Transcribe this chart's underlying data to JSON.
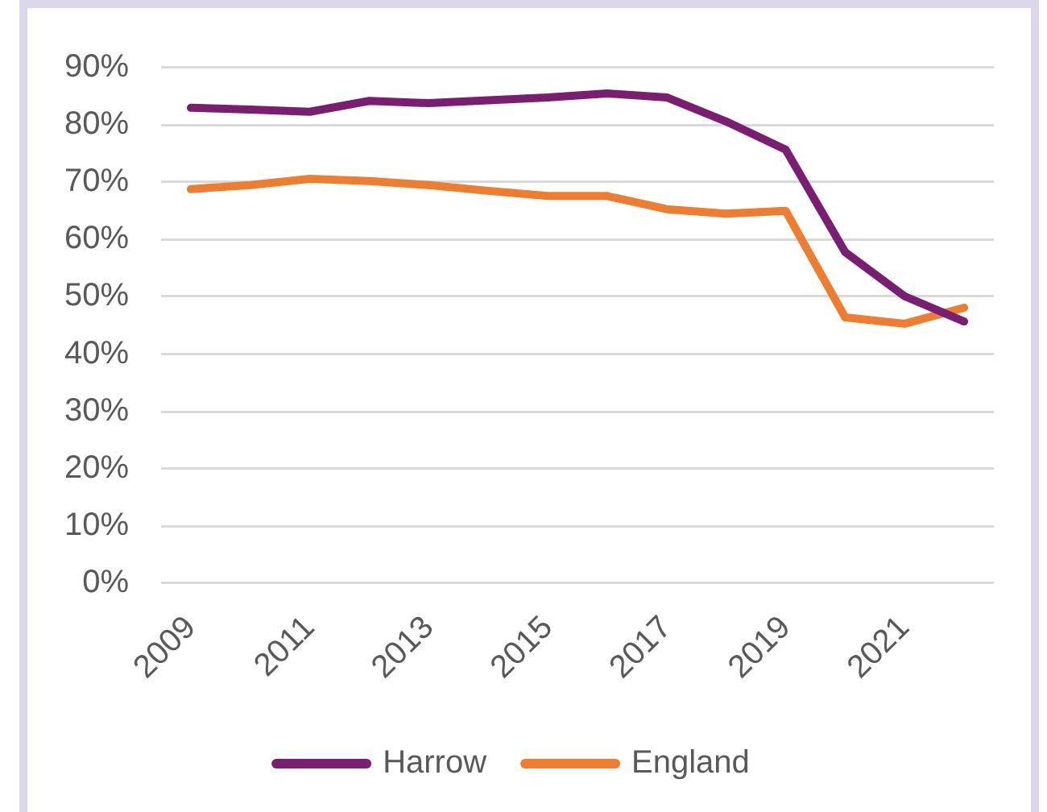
{
  "chart_data": {
    "type": "line",
    "categories": [
      "2009",
      null,
      "2011",
      null,
      "2013",
      null,
      "2015",
      null,
      "2017",
      null,
      "2019",
      null,
      "2021",
      null
    ],
    "series": [
      {
        "name": "Harrow",
        "color": "#7a1e71",
        "values": [
          83.0,
          82.7,
          82.3,
          84.2,
          83.8,
          84.3,
          84.8,
          85.5,
          84.8,
          80.6,
          75.7,
          57.8,
          50.1,
          45.7
        ]
      },
      {
        "name": "England",
        "color": "#ed7d31",
        "values": [
          68.8,
          69.5,
          70.6,
          70.2,
          69.5,
          68.5,
          67.6,
          67.6,
          65.3,
          64.5,
          65.0,
          46.4,
          45.3,
          48.1
        ]
      }
    ],
    "ylim": [
      0,
      90
    ],
    "yticks": [
      {
        "value": 0,
        "label": "0%"
      },
      {
        "value": 10,
        "label": "10%"
      },
      {
        "value": 20,
        "label": "20%"
      },
      {
        "value": 30,
        "label": "30%"
      },
      {
        "value": 40,
        "label": "40%"
      },
      {
        "value": 50,
        "label": "50%"
      },
      {
        "value": 60,
        "label": "60%"
      },
      {
        "value": 70,
        "label": "70%"
      },
      {
        "value": 80,
        "label": "80%"
      },
      {
        "value": 90,
        "label": "90%"
      }
    ],
    "grid": "y",
    "legend": "bottom",
    "marker": "none",
    "line_style": "solid"
  }
}
